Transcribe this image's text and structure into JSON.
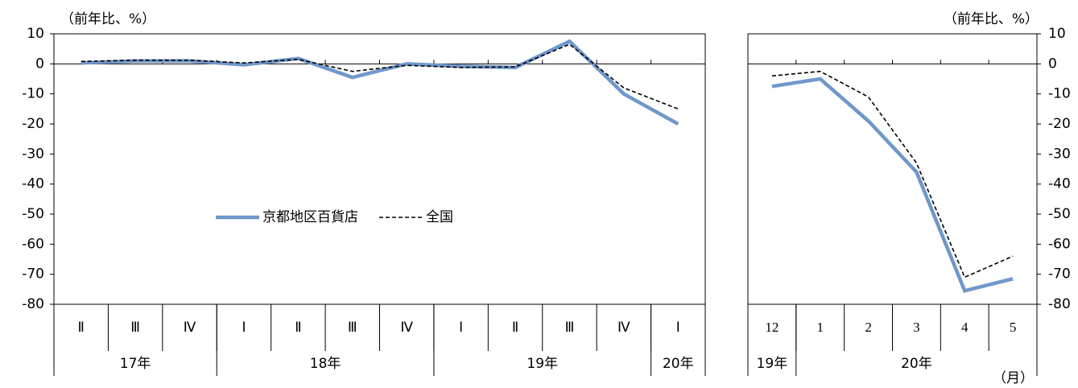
{
  "chart_data": [
    {
      "type": "line",
      "y_label": "（前年比、%）",
      "categories": [
        "Ⅱ",
        "Ⅲ",
        "Ⅳ",
        "Ⅰ",
        "Ⅱ",
        "Ⅲ",
        "Ⅳ",
        "Ⅰ",
        "Ⅱ",
        "Ⅲ",
        "Ⅳ",
        "Ⅰ"
      ],
      "groups": [
        {
          "label": "17年",
          "count": 3
        },
        {
          "label": "18年",
          "count": 4
        },
        {
          "label": "19年",
          "count": 4
        },
        {
          "label": "20年",
          "count": 1
        }
      ],
      "series": [
        {
          "name": "京都地区百貨店",
          "color": "#7097c9",
          "values": [
            0.3,
            1,
            1,
            -0.3,
            1.8,
            -4.5,
            0,
            -0.8,
            -1.2,
            7.5,
            -10,
            -20
          ]
        },
        {
          "name": "全国",
          "color": "#000000",
          "dashed": true,
          "values": [
            0.8,
            1.2,
            1.2,
            0.3,
            1.5,
            -2.5,
            -0.5,
            -1.2,
            -1,
            6.5,
            -8,
            -15
          ]
        }
      ],
      "ylim": [
        -80,
        10
      ],
      "yticks": [
        10,
        0,
        -10,
        -20,
        -30,
        -40,
        -50,
        -60,
        -70,
        -80
      ],
      "y_axis_side": "left",
      "legend": "center"
    },
    {
      "type": "line",
      "y_label": "（前年比、%）",
      "x_label": "（月）",
      "categories": [
        "12",
        "1",
        "2",
        "3",
        "4",
        "5"
      ],
      "groups": [
        {
          "label": "19年",
          "count": 1
        },
        {
          "label": "20年",
          "count": 5
        }
      ],
      "series": [
        {
          "color": "#7097c9",
          "values": [
            -7.5,
            -5,
            -19,
            -36,
            -75.5,
            -71.5
          ]
        },
        {
          "color": "#000000",
          "dashed": true,
          "values": [
            -4,
            -2.5,
            -11,
            -33,
            -71,
            -64
          ]
        }
      ],
      "ylim": [
        -80,
        10
      ],
      "yticks": [
        10,
        0,
        -10,
        -20,
        -30,
        -40,
        -50,
        -60,
        -70,
        -80
      ],
      "y_axis_side": "right"
    }
  ]
}
